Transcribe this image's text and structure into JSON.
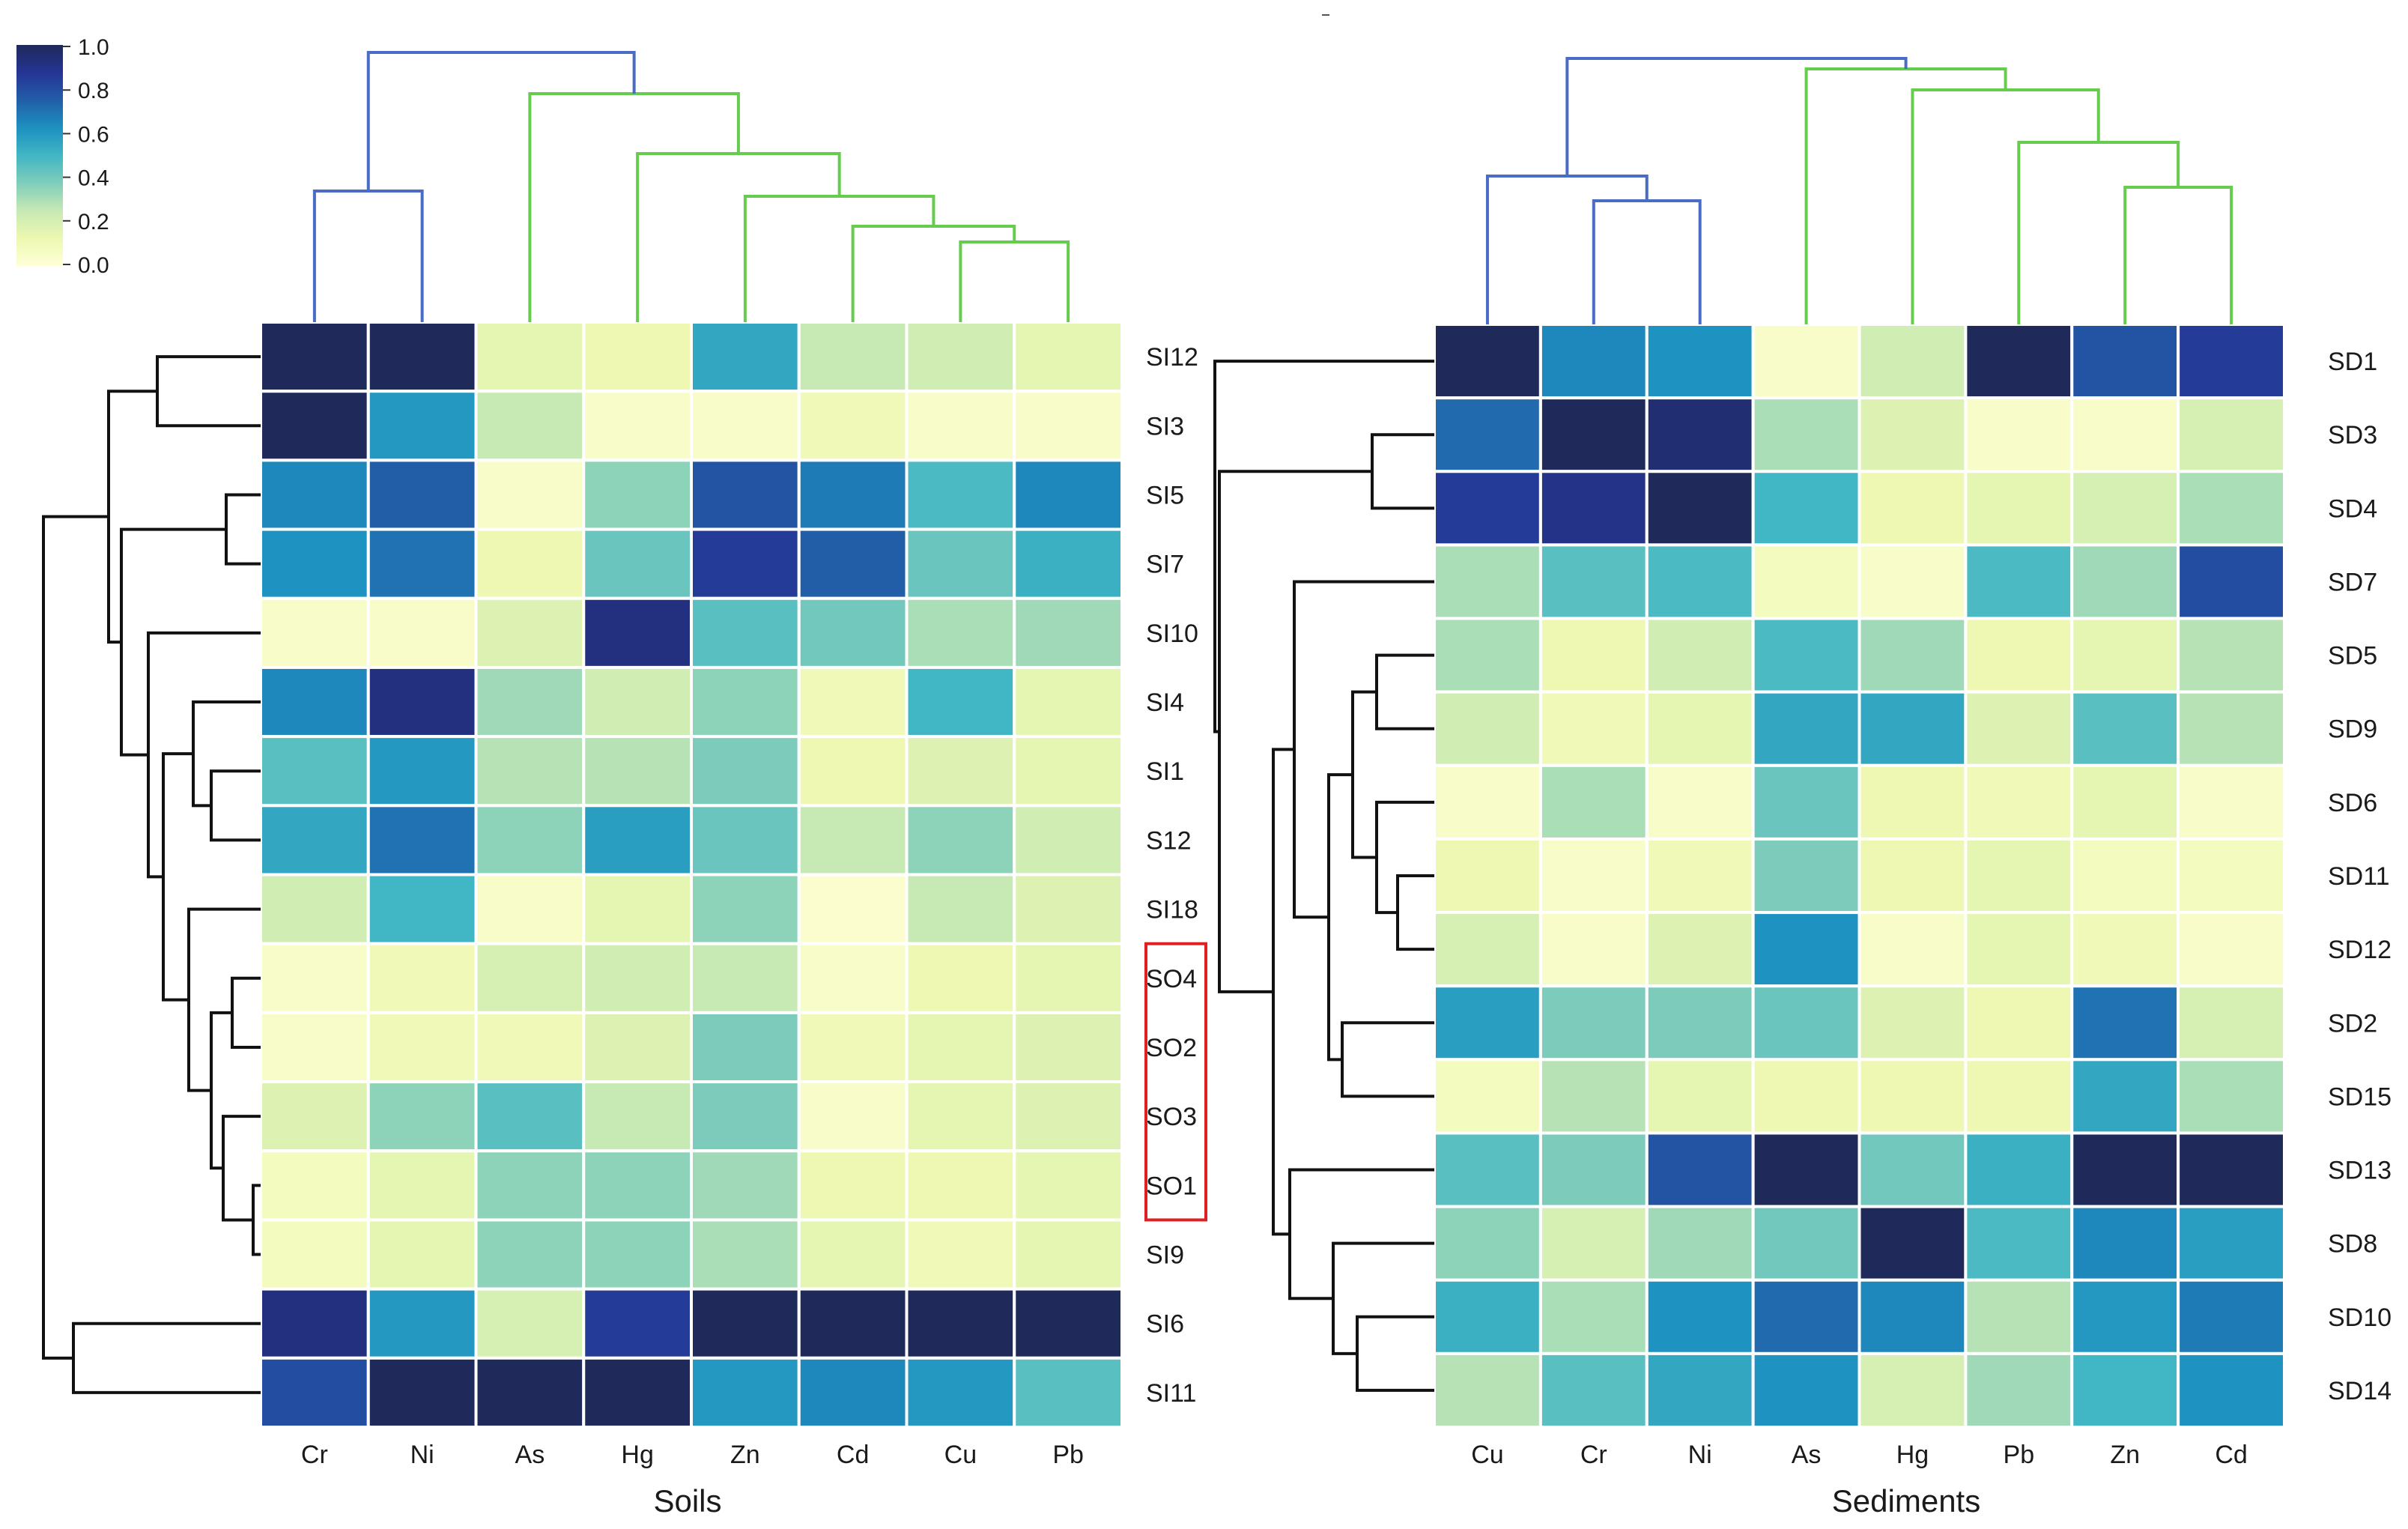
{
  "colorbar": {
    "ticks": [
      "1.0",
      "0.8",
      "0.6",
      "0.4",
      "0.2",
      "0.0"
    ],
    "stops": [
      "#ffffd9",
      "#edf8b1",
      "#c7e9b4",
      "#7fcdbb",
      "#41b6c4",
      "#1d91c0",
      "#225ea8",
      "#253494",
      "#1f2a5a"
    ]
  },
  "colors": {
    "col_dendro_a": "#4a6cc4",
    "col_dendro_b": "#66cc4d",
    "row_dendro": "#111111",
    "highlight": "#e02020"
  },
  "chart_data": [
    {
      "type": "heatmap",
      "name": "soils",
      "xlabel": "Soils",
      "columns": [
        "Cr",
        "Ni",
        "As",
        "Hg",
        "Zn",
        "Cd",
        "Cu",
        "Pb"
      ],
      "rows": [
        "SI12",
        "SI3",
        "SI5",
        "SI7",
        "SI10",
        "SI4",
        "SI1",
        "S12",
        "SI18",
        "SO4",
        "SO2",
        "SO3",
        "SO1",
        "SI9",
        "SI6",
        "SI11"
      ],
      "highlight_rows": [
        "SO4",
        "SO2",
        "SO3",
        "SO1"
      ],
      "values": [
        [
          1.0,
          1.0,
          0.15,
          0.12,
          0.55,
          0.25,
          0.22,
          0.15
        ],
        [
          1.0,
          0.6,
          0.25,
          0.05,
          0.05,
          0.1,
          0.05,
          0.05
        ],
        [
          0.65,
          0.75,
          0.05,
          0.35,
          0.78,
          0.68,
          0.48,
          0.65
        ],
        [
          0.62,
          0.7,
          0.12,
          0.42,
          0.85,
          0.75,
          0.42,
          0.52
        ],
        [
          0.05,
          0.05,
          0.18,
          0.92,
          0.45,
          0.4,
          0.3,
          0.32
        ],
        [
          0.65,
          0.92,
          0.32,
          0.22,
          0.35,
          0.1,
          0.5,
          0.15
        ],
        [
          0.45,
          0.6,
          0.28,
          0.28,
          0.38,
          0.12,
          0.18,
          0.15
        ],
        [
          0.55,
          0.7,
          0.35,
          0.58,
          0.42,
          0.25,
          0.35,
          0.22
        ],
        [
          0.22,
          0.5,
          0.05,
          0.15,
          0.35,
          0.03,
          0.25,
          0.18
        ],
        [
          0.05,
          0.1,
          0.2,
          0.22,
          0.25,
          0.05,
          0.12,
          0.15
        ],
        [
          0.05,
          0.1,
          0.1,
          0.18,
          0.38,
          0.1,
          0.15,
          0.18
        ],
        [
          0.18,
          0.35,
          0.45,
          0.25,
          0.38,
          0.05,
          0.15,
          0.18
        ],
        [
          0.08,
          0.15,
          0.35,
          0.35,
          0.32,
          0.12,
          0.12,
          0.15
        ],
        [
          0.08,
          0.15,
          0.35,
          0.35,
          0.3,
          0.15,
          0.1,
          0.15
        ],
        [
          0.92,
          0.6,
          0.2,
          0.85,
          1.0,
          1.0,
          1.0,
          1.0
        ],
        [
          0.8,
          1.0,
          1.0,
          1.0,
          0.6,
          0.65,
          0.6,
          0.45
        ]
      ],
      "column_order": "Cr Ni As Hg Zn Cd Cu Pb"
    },
    {
      "type": "heatmap",
      "name": "sediments",
      "xlabel": "Sediments",
      "columns": [
        "Cu",
        "Cr",
        "Ni",
        "As",
        "Hg",
        "Pb",
        "Zn",
        "Cd"
      ],
      "rows": [
        "SD1",
        "SD3",
        "SD4",
        "SD7",
        "SD5",
        "SD9",
        "SD6",
        "SD11",
        "SD12",
        "SD2",
        "SD15",
        "SD13",
        "SD8",
        "SD10",
        "SD14"
      ],
      "values": [
        [
          1.0,
          0.65,
          0.62,
          0.05,
          0.22,
          1.0,
          0.78,
          0.85
        ],
        [
          0.72,
          1.0,
          0.95,
          0.3,
          0.18,
          0.05,
          0.05,
          0.2
        ],
        [
          0.85,
          0.9,
          1.0,
          0.5,
          0.12,
          0.15,
          0.2,
          0.3
        ],
        [
          0.3,
          0.45,
          0.48,
          0.08,
          0.05,
          0.48,
          0.32,
          0.8
        ],
        [
          0.3,
          0.12,
          0.22,
          0.48,
          0.32,
          0.12,
          0.15,
          0.28
        ],
        [
          0.22,
          0.1,
          0.15,
          0.55,
          0.55,
          0.18,
          0.45,
          0.28
        ],
        [
          0.05,
          0.3,
          0.05,
          0.42,
          0.12,
          0.1,
          0.15,
          0.05
        ],
        [
          0.12,
          0.05,
          0.1,
          0.38,
          0.12,
          0.15,
          0.08,
          0.08
        ],
        [
          0.2,
          0.05,
          0.18,
          0.62,
          0.05,
          0.15,
          0.1,
          0.05
        ],
        [
          0.58,
          0.38,
          0.38,
          0.42,
          0.18,
          0.12,
          0.7,
          0.2
        ],
        [
          0.08,
          0.28,
          0.15,
          0.12,
          0.12,
          0.12,
          0.55,
          0.3
        ],
        [
          0.45,
          0.38,
          0.78,
          1.0,
          0.4,
          0.52,
          1.0,
          1.0
        ],
        [
          0.35,
          0.2,
          0.32,
          0.4,
          1.0,
          0.48,
          0.65,
          0.58
        ],
        [
          0.52,
          0.3,
          0.62,
          0.72,
          0.65,
          0.28,
          0.6,
          0.68
        ],
        [
          0.28,
          0.45,
          0.55,
          0.62,
          0.2,
          0.32,
          0.5,
          0.62
        ]
      ],
      "column_order": "Cu Cr Ni As Hg Pb Zn Cd"
    }
  ]
}
